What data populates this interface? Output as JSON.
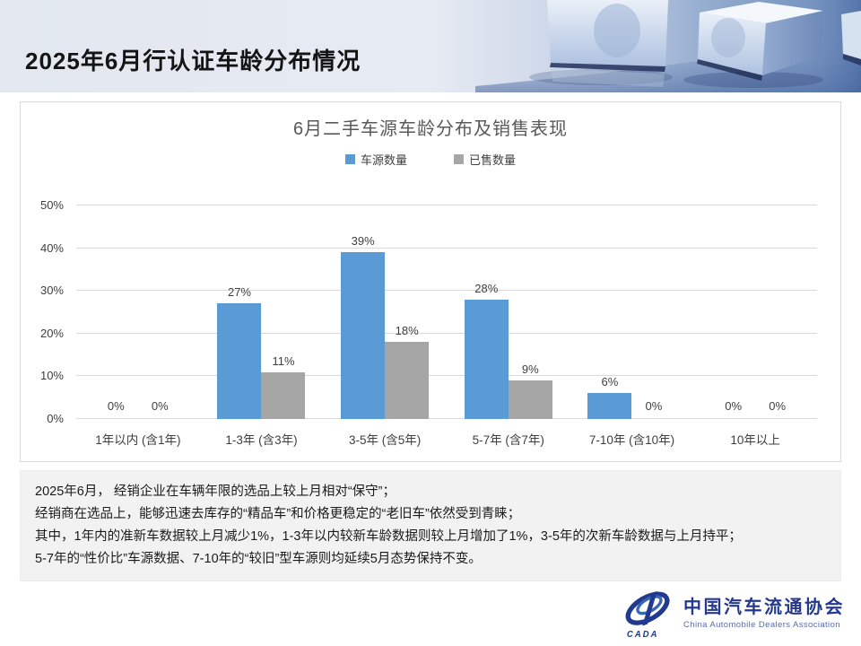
{
  "page": {
    "header_title": "2025年6月行认证车龄分布情况"
  },
  "chart_data": {
    "type": "bar",
    "title": "6月二手车源车龄分布及销售表现",
    "categories": [
      "1年以内 (含1年)",
      "1-3年 (含3年)",
      "3-5年 (含5年)",
      "5-7年 (含7年)",
      "7-10年 (含10年)",
      "10年以上"
    ],
    "series": [
      {
        "name": "车源数量",
        "color": "#5B9BD5",
        "values": [
          0,
          27,
          39,
          28,
          6,
          0
        ]
      },
      {
        "name": "已售数量",
        "color": "#A6A6A6",
        "values": [
          0,
          11,
          18,
          9,
          0,
          0
        ]
      }
    ],
    "xlabel": "",
    "ylabel": "",
    "ylim": [
      0,
      50
    ],
    "y_ticks": [
      "0%",
      "10%",
      "20%",
      "30%",
      "40%",
      "50%"
    ],
    "grid": true,
    "legend_position": "top",
    "value_suffix": "%"
  },
  "summary": {
    "lines": [
      "2025年6月， 经销企业在车辆年限的选品上较上月相对“保守”；",
      "经销商在选品上，能够迅速去库存的“精品车”和价格更稳定的“老旧车”依然受到青睐；",
      "其中，1年内的准新车数据较上月减少1%，1-3年以内较新车龄数据则较上月增加了1%，3-5年的次新车龄数据与上月持平；",
      "5-7年的“性价比”车源数据、7-10年的“较旧”型车源则均延续5月态势保持不变。"
    ]
  },
  "footer": {
    "logo_mark": "CADA",
    "logo_cn": "中国汽车流通协会",
    "logo_en": "China Automobile Dealers Association",
    "brand_blue": "#24388E"
  }
}
